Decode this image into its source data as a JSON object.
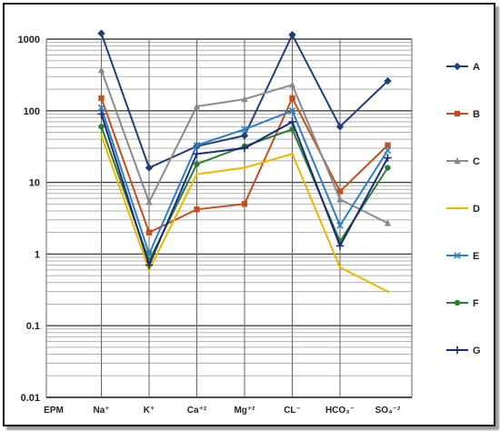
{
  "chart_data": {
    "type": "line",
    "title": "",
    "xlabel": "",
    "ylabel": "",
    "yscale": "log",
    "ylim": [
      0.01,
      1000
    ],
    "y_ticks": [
      "0.01",
      "0.1",
      "1",
      "10",
      "100",
      "1000"
    ],
    "grid": "horizontal",
    "legend_position": "right",
    "x_axis_label": "EPM",
    "categories": [
      "Na⁺",
      "K⁺",
      "Ca⁺²",
      "Mg⁺²",
      "CL⁻",
      "HCO₃⁻",
      "SO₄⁻²"
    ],
    "series": [
      {
        "name": "A",
        "color": "#1f3f77",
        "marker": "diamond",
        "values": [
          1200,
          16,
          32,
          45,
          1150,
          60,
          260
        ]
      },
      {
        "name": "B",
        "color": "#c0501e",
        "marker": "square",
        "values": [
          150,
          2,
          4.2,
          5,
          150,
          7.5,
          33
        ]
      },
      {
        "name": "C",
        "color": "#8a8a8a",
        "marker": "triangle",
        "values": [
          370,
          5.3,
          115,
          145,
          230,
          5.8,
          2.7
        ]
      },
      {
        "name": "D",
        "color": "#e8b800",
        "marker": "none",
        "values": [
          45,
          0.6,
          13,
          16,
          25,
          0.65,
          0.3
        ]
      },
      {
        "name": "E",
        "color": "#2f7fbf",
        "marker": "x",
        "values": [
          110,
          1,
          33,
          55,
          100,
          2.5,
          28
        ]
      },
      {
        "name": "F",
        "color": "#2e7d32",
        "marker": "circle",
        "values": [
          60,
          0.8,
          18,
          32,
          55,
          1.5,
          16
        ]
      },
      {
        "name": "G",
        "color": "#1a2b7a",
        "marker": "plus",
        "values": [
          90,
          0.7,
          25,
          30,
          70,
          1.3,
          22
        ]
      }
    ]
  }
}
